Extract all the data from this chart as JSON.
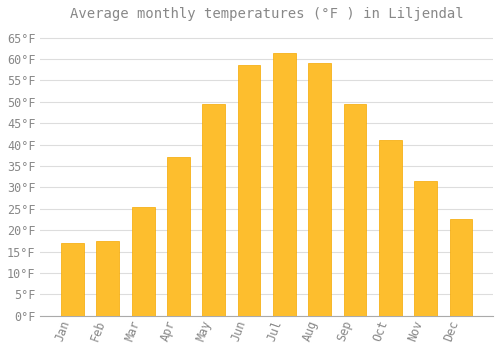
{
  "title": "Average monthly temperatures (°F ) in Liljendal",
  "months": [
    "Jan",
    "Feb",
    "Mar",
    "Apr",
    "May",
    "Jun",
    "Jul",
    "Aug",
    "Sep",
    "Oct",
    "Nov",
    "Dec"
  ],
  "values": [
    17,
    17.5,
    25.5,
    37,
    49.5,
    58.5,
    61.5,
    59,
    49.5,
    41,
    31.5,
    22.5
  ],
  "bar_color": "#FDBE2E",
  "bar_edge_color": "#F5A800",
  "background_color": "#FFFFFF",
  "grid_color": "#DDDDDD",
  "text_color": "#888888",
  "ylim": [
    0,
    67
  ],
  "yticks": [
    0,
    5,
    10,
    15,
    20,
    25,
    30,
    35,
    40,
    45,
    50,
    55,
    60,
    65
  ],
  "title_fontsize": 10,
  "tick_fontsize": 8.5
}
